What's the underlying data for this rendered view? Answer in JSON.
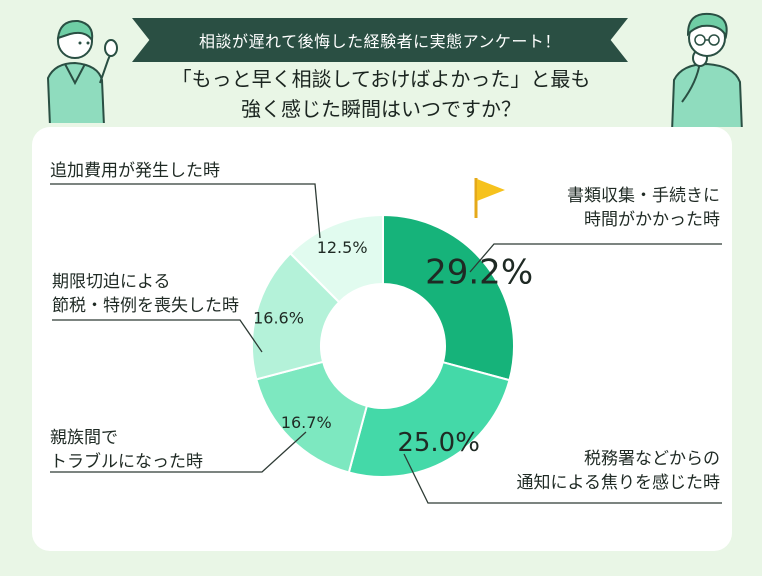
{
  "header": {
    "banner": "相談が遅れて後悔した経験者に実態アンケート！",
    "question_line1": "「もっと早く相談しておけばよかった」と最も",
    "question_line2": "強く感じた瞬間はいつですか？"
  },
  "chart_data": {
    "type": "pie",
    "donut": true,
    "slices": [
      {
        "label_lines": [
          "書類収集・手続きに",
          "時間がかかった時"
        ],
        "value": 29.2,
        "value_label": "29.2%",
        "color": "#16b37a"
      },
      {
        "label_lines": [
          "税務署などからの",
          "通知による焦りを感じた時"
        ],
        "value": 25.0,
        "value_label": "25.0%",
        "color": "#44d9a8"
      },
      {
        "label_lines": [
          "親族間で",
          "トラブルになった時"
        ],
        "value": 16.7,
        "value_label": "16.7%",
        "color": "#7de8c0"
      },
      {
        "label_lines": [
          "期限切迫による",
          "節税・特例を喪失した時"
        ],
        "value": 16.6,
        "value_label": "16.6%",
        "color": "#b4f2d9"
      },
      {
        "label_lines": [
          "追加費用が発生した時"
        ],
        "value": 12.5,
        "value_label": "12.5%",
        "color": "#e1fbef"
      }
    ]
  },
  "icons": {
    "flag": "flag-icon",
    "left_person": "person-pointing-icon",
    "right_person": "person-thinking-icon"
  }
}
